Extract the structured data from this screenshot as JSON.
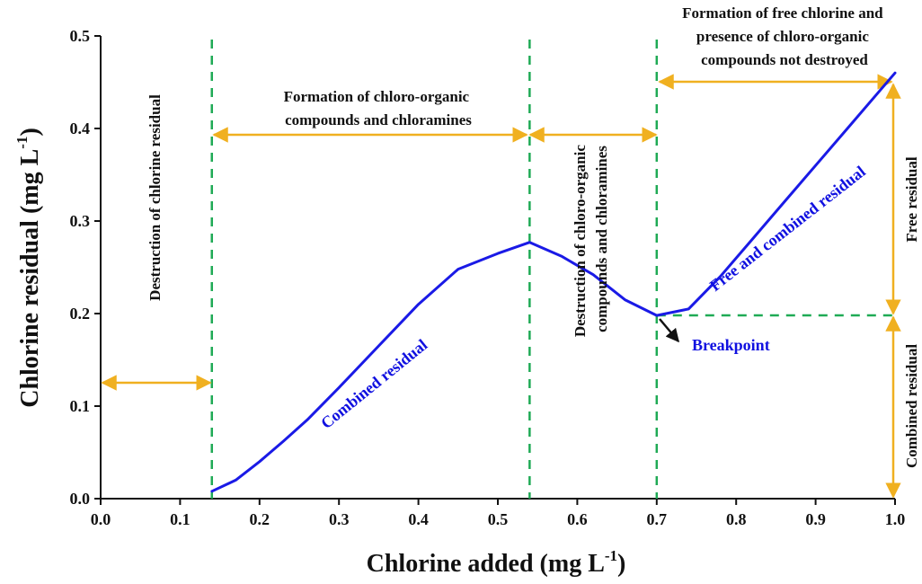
{
  "chart_data": {
    "type": "line",
    "xlabel_main": "Chlorine added (mg L",
    "xlabel_sup": "-1",
    "xlabel_end": ")",
    "ylabel_main": "Chlorine residual (mg L",
    "ylabel_sup": "-1",
    "ylabel_end": ")",
    "xlim": [
      0,
      1.0
    ],
    "ylim": [
      0,
      0.5
    ],
    "xticks": [
      "0.0",
      "0.1",
      "0.2",
      "0.3",
      "0.4",
      "0.5",
      "0.6",
      "0.7",
      "0.8",
      "0.9",
      "1.0"
    ],
    "yticks": [
      "0.0",
      "0.1",
      "0.2",
      "0.3",
      "0.4",
      "0.5"
    ],
    "x": [
      0.14,
      0.17,
      0.2,
      0.23,
      0.26,
      0.3,
      0.35,
      0.4,
      0.45,
      0.5,
      0.54,
      0.58,
      0.62,
      0.66,
      0.7,
      0.74,
      0.78,
      0.82,
      0.86,
      0.9,
      0.94,
      0.98,
      1.0
    ],
    "y": [
      0.008,
      0.02,
      0.04,
      0.062,
      0.085,
      0.12,
      0.165,
      0.21,
      0.248,
      0.265,
      0.277,
      0.262,
      0.242,
      0.215,
      0.198,
      0.205,
      0.24,
      0.28,
      0.32,
      0.36,
      0.4,
      0.44,
      0.46
    ],
    "series_color": "#1a1ae6",
    "guide_color": "#1faa55",
    "arrow_color": "#f0b020",
    "vlines": [
      0.14,
      0.54,
      0.7
    ],
    "breakpoint": {
      "x": 0.7,
      "y": 0.198
    },
    "annotations": {
      "destruction_residual": "Destruction of chlorine residual",
      "formation_line1": "Formation of chloro-organic",
      "formation_line2": "compounds and chloramines",
      "destruction_compounds_line1": "Destruction of chloro-organic",
      "destruction_compounds_line2": "compounds and chloramines",
      "free_formation_line1": "Formation of free chlorine and",
      "free_formation_line2": "presence of chloro-organic",
      "free_formation_line3": "compounds not destroyed",
      "combined_residual": "Combined residual",
      "free_and_combined": "Free and combined residual",
      "breakpoint": "Breakpoint",
      "free_residual": "Free residual",
      "combined_residual_side": "Combined residual"
    }
  }
}
